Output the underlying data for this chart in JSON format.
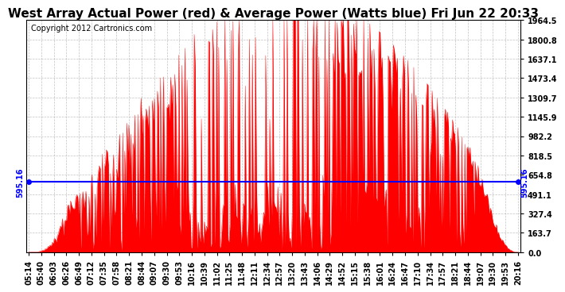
{
  "title": "West Array Actual Power (red) & Average Power (Watts blue) Fri Jun 22 20:33",
  "copyright": "Copyright 2012 Cartronics.com",
  "ylim": [
    0.0,
    1964.5
  ],
  "yticks": [
    0.0,
    163.7,
    327.4,
    491.1,
    654.8,
    818.5,
    982.2,
    1145.9,
    1309.7,
    1473.4,
    1637.1,
    1800.8,
    1964.5
  ],
  "avg_power": 595.16,
  "avg_label": "595.16",
  "background_color": "#ffffff",
  "grid_color": "#aaaaaa",
  "fill_color": "#ff0000",
  "line_color": "#ff0000",
  "avg_line_color": "#0000ff",
  "title_fontsize": 11,
  "copyright_fontsize": 7,
  "tick_fontsize": 7
}
